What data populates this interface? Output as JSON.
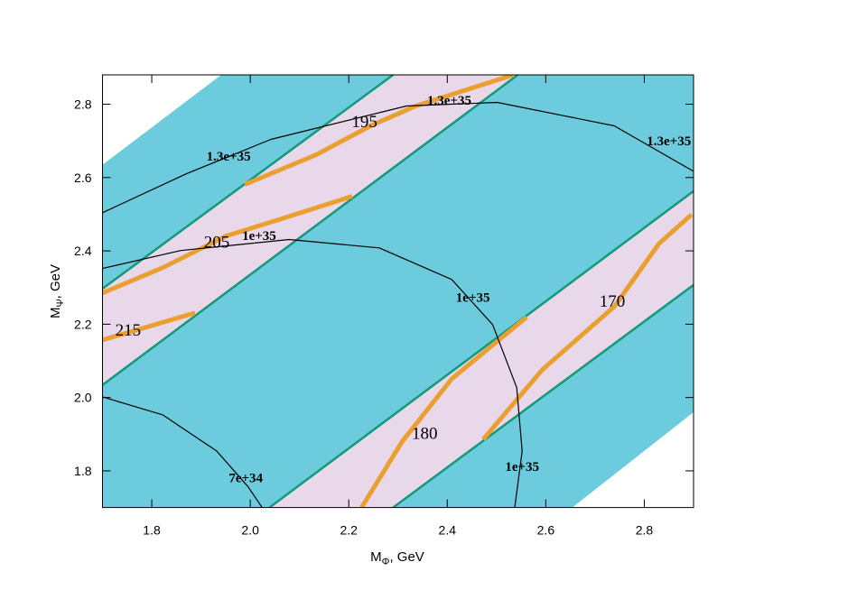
{
  "chart_data": {
    "type": "contour",
    "x_label": [
      "M",
      "Φ",
      ", GeV"
    ],
    "y_label": [
      "M",
      "Ψ",
      ", GeV"
    ],
    "xlim": [
      1.7,
      2.9
    ],
    "ylim": [
      1.7,
      2.88
    ],
    "xticks": [
      1.8,
      {
        "value": 2,
        "label": "2.0"
      },
      2.2,
      2.4,
      2.6,
      2.8
    ],
    "yticks": [
      1.8,
      {
        "value": 2,
        "label": "2.0"
      },
      2.2,
      2.4,
      2.6,
      2.8
    ],
    "fills": [
      {
        "color": "#6ccbdc",
        "x": [
          1.7,
          1.941,
          2.9,
          2.9,
          2.654,
          1.7
        ],
        "y": [
          2.635,
          2.88,
          2.88,
          1.96,
          1.7,
          1.7
        ]
      }
    ],
    "bands": [
      {
        "color": "#e9d7ea",
        "x": [
          1.7,
          2.29,
          2.543,
          1.7
        ],
        "y": [
          2.297,
          2.88,
          2.88,
          2.034
        ]
      },
      {
        "color": "#e9d7ea",
        "x": [
          2.039,
          2.9,
          2.9,
          2.29
        ],
        "y": [
          1.7,
          2.563,
          2.307,
          1.7
        ]
      }
    ],
    "boundaries": [
      {
        "color": "#12997a",
        "x": [
          1.7,
          2.29
        ],
        "y": [
          2.297,
          2.88
        ]
      },
      {
        "color": "#12997a",
        "x": [
          1.7,
          2.543
        ],
        "y": [
          2.034,
          2.88
        ]
      },
      {
        "color": "#12997a",
        "x": [
          2.039,
          2.9
        ],
        "y": [
          1.7,
          2.563
        ]
      },
      {
        "color": "#12997a",
        "x": [
          2.29,
          2.9
        ],
        "y": [
          1.7,
          2.307
        ]
      }
    ],
    "curves": [
      {
        "color": "#e9a030",
        "x": [
          1.989,
          2.134,
          2.244,
          2.336,
          2.534
        ],
        "y": [
          2.581,
          2.662,
          2.741,
          2.795,
          2.88
        ],
        "labels": [
          {
            "text": "195",
            "x": 2.232,
            "y": 2.748
          }
        ]
      },
      {
        "color": "#e9a030",
        "x": [
          1.7,
          1.822,
          1.95,
          2.079,
          2.207
        ],
        "y": [
          2.285,
          2.354,
          2.44,
          2.494,
          2.549
        ],
        "labels": [
          {
            "text": "205",
            "x": 1.932,
            "y": 2.42
          }
        ]
      },
      {
        "color": "#e9a030",
        "x": [
          1.7,
          1.888
        ],
        "y": [
          2.157,
          2.231
        ],
        "labels": [
          {
            "text": "215",
            "x": 1.752,
            "y": 2.18
          }
        ]
      },
      {
        "color": "#e9a030",
        "x": [
          2.226,
          2.308,
          2.409,
          2.561
        ],
        "y": [
          1.7,
          1.879,
          2.051,
          2.219
        ],
        "labels": [
          {
            "text": "180",
            "x": 2.354,
            "y": 1.898
          }
        ]
      },
      {
        "color": "#e9a030",
        "x": [
          2.473,
          2.593,
          2.739,
          2.83,
          2.896
        ],
        "y": [
          1.886,
          2.076,
          2.248,
          2.42,
          2.499
        ],
        "labels": [
          {
            "text": "170",
            "x": 2.735,
            "y": 2.258
          }
        ]
      }
    ],
    "contours": [
      {
        "color": "#000000",
        "x": [
          1.7,
          1.87,
          2.042,
          2.317,
          2.501,
          2.739,
          2.9
        ],
        "y": [
          2.504,
          2.61,
          2.704,
          2.795,
          2.805,
          2.741,
          2.617
        ],
        "labels": [
          {
            "text": "1.3e+35",
            "x": 1.956,
            "y": 2.655
          },
          {
            "text": "1.3e+35",
            "x": 2.404,
            "y": 2.807
          },
          {
            "text": "1.3e+35",
            "x": 2.85,
            "y": 2.697
          }
        ]
      },
      {
        "color": "#000000",
        "x": [
          1.7,
          1.859,
          2.079,
          2.262,
          2.409,
          2.492,
          2.541,
          2.552,
          2.537
        ],
        "y": [
          2.352,
          2.401,
          2.431,
          2.408,
          2.322,
          2.199,
          2.027,
          1.854,
          1.7
        ],
        "labels": [
          {
            "text": "1e+35",
            "x": 2.018,
            "y": 2.438
          },
          {
            "text": "1e+35",
            "x": 2.452,
            "y": 2.27
          },
          {
            "text": "1e+35",
            "x": 2.552,
            "y": 1.808
          }
        ]
      },
      {
        "color": "#000000",
        "x": [
          1.7,
          1.822,
          1.932,
          1.996,
          2.024
        ],
        "y": [
          2.002,
          1.953,
          1.854,
          1.756,
          1.7
        ],
        "labels": [
          {
            "text": "7e+34",
            "x": 1.991,
            "y": 1.778
          }
        ]
      }
    ]
  }
}
